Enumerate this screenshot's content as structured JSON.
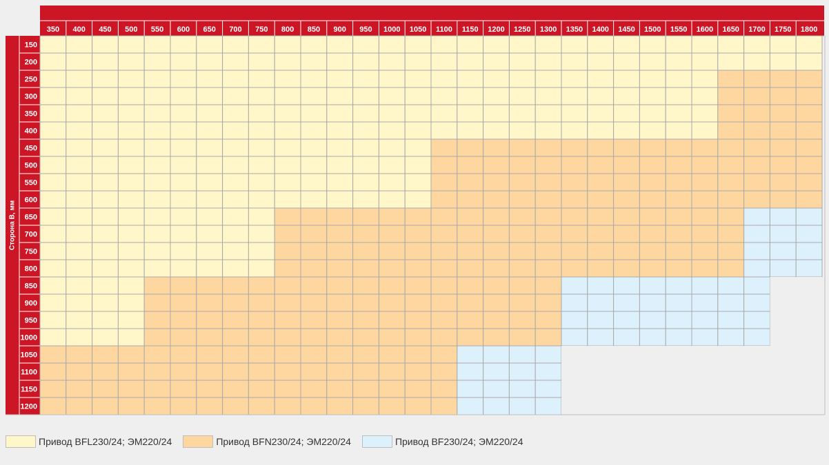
{
  "chart_data": {
    "type": "heatmap",
    "ylabel": "Сторона В, мм",
    "columns": [
      350,
      400,
      450,
      500,
      550,
      600,
      650,
      700,
      750,
      800,
      850,
      900,
      950,
      1000,
      1050,
      1100,
      1150,
      1200,
      1250,
      1300,
      1350,
      1400,
      1450,
      1500,
      1550,
      1600,
      1650,
      1700,
      1750,
      1800
    ],
    "rows": [
      150,
      200,
      250,
      300,
      350,
      400,
      450,
      500,
      550,
      600,
      650,
      700,
      750,
      800,
      850,
      900,
      950,
      1000,
      1050,
      1100,
      1150,
      1200
    ],
    "row_cells": [
      "111111111111111111111111111111",
      "111111111111111111111111111111",
      "111111111111111111111111112222",
      "111111111111111111111111112222",
      "111111111111111111111111112222",
      "111111111111111111111111112222",
      "111111111111111222222222222222",
      "111111111111111222222222222222",
      "111111111111111222222222222222",
      "111111111111111222222222222222",
      "111111111222222222222222222333",
      "111111111222222222222222222333",
      "111111111222222222222222222333",
      "111111111222222222222222222333",
      "1111222222222222222233333333--",
      "1111222222222222222233333333--",
      "1111222222222222222233333333--",
      "1111222222222222222233333333--",
      "222222222222222233330000000000",
      "222222222222222233330000000000",
      "222222222222222233330000000000",
      "222222222222222233330000000000"
    ],
    "cell_codes": {
      "0": "empty",
      "1": "BFL230/24",
      "2": "BFN230/24",
      "3": "BF230/24",
      "-": "empty"
    },
    "colors": {
      "header": "#cc1626",
      "1": "#fff7c9",
      "2": "#fed7a0",
      "3": "#ddf1fd",
      "empty": "#efefef",
      "grid": "#a9a9a9"
    }
  },
  "legend": [
    {
      "label": "Привод BFL230/24; ЭМ220/24",
      "color": "#fff7c9"
    },
    {
      "label": "Привод BFN230/24; ЭМ220/24",
      "color": "#fed7a0"
    },
    {
      "label": "Привод BF230/24; ЭМ220/24",
      "color": "#ddf1fd"
    }
  ]
}
